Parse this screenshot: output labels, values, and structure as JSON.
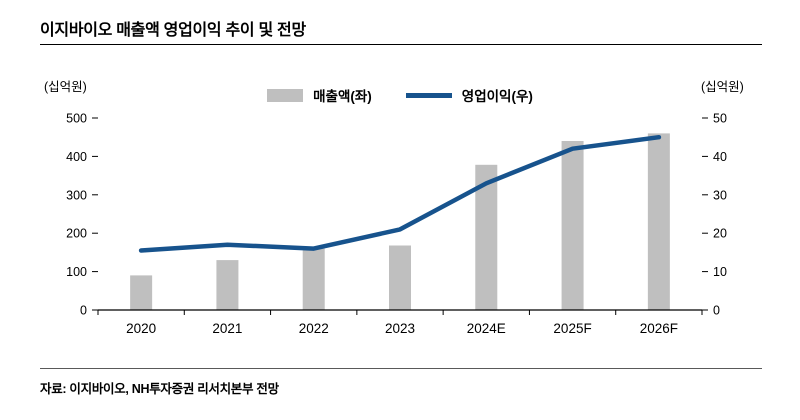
{
  "page": {
    "title": "이지바이오 매출액 영업이익 추이 및 전망",
    "source": "자료: 이지바이오, NH투자증권 리서치본부 전망"
  },
  "chart_data": {
    "type": "bar",
    "subtype": "bar+line combo",
    "title": "이지바이오 매출액 영업이익 추이 및 전망",
    "categories": [
      "2020",
      "2021",
      "2022",
      "2023",
      "2024E",
      "2025F",
      "2026F"
    ],
    "left_axis": {
      "label": "(십억원)",
      "min": 0,
      "max": 500,
      "step": 100
    },
    "right_axis": {
      "label": "(십억원)",
      "min": 0,
      "max": 50,
      "step": 10
    },
    "grid": false,
    "legend_position": "top-center",
    "series": [
      {
        "name": "매출액(좌)",
        "type": "bar",
        "axis": "left",
        "color": "#bfbfbf",
        "values": [
          90,
          130,
          160,
          168,
          378,
          440,
          460
        ]
      },
      {
        "name": "영업이익(우)",
        "type": "line",
        "axis": "right",
        "color": "#17538d",
        "values": [
          15.5,
          17,
          16,
          21,
          33,
          42,
          45
        ]
      }
    ]
  }
}
